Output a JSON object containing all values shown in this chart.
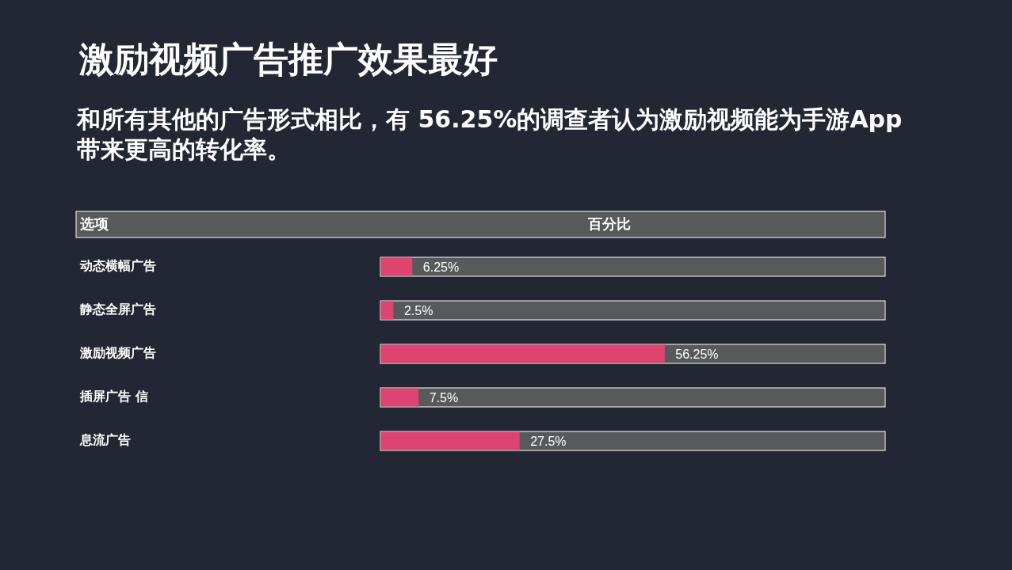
{
  "chart_data": {
    "type": "bar",
    "orientation": "horizontal",
    "title": "激励视频广告推广效果最好",
    "subtitle": "和所有其他的广告形式相比，有 56.25%的调查者认为激励视频能为手游App 带来更高的转化率。",
    "ylabel": "选项",
    "xlabel": "百分比",
    "categories": [
      "动态横幅广告",
      "静态全屏广告",
      "激励视频广告",
      "插屏广告 信",
      "息流广告"
    ],
    "values": [
      6.25,
      2.5,
      56.25,
      7.5,
      27.5
    ],
    "value_labels": [
      "6.25%",
      "2.5%",
      "56.25%",
      "7.5%",
      "27.5%"
    ],
    "color": "#dd4470",
    "xlim": [
      0,
      100
    ]
  }
}
